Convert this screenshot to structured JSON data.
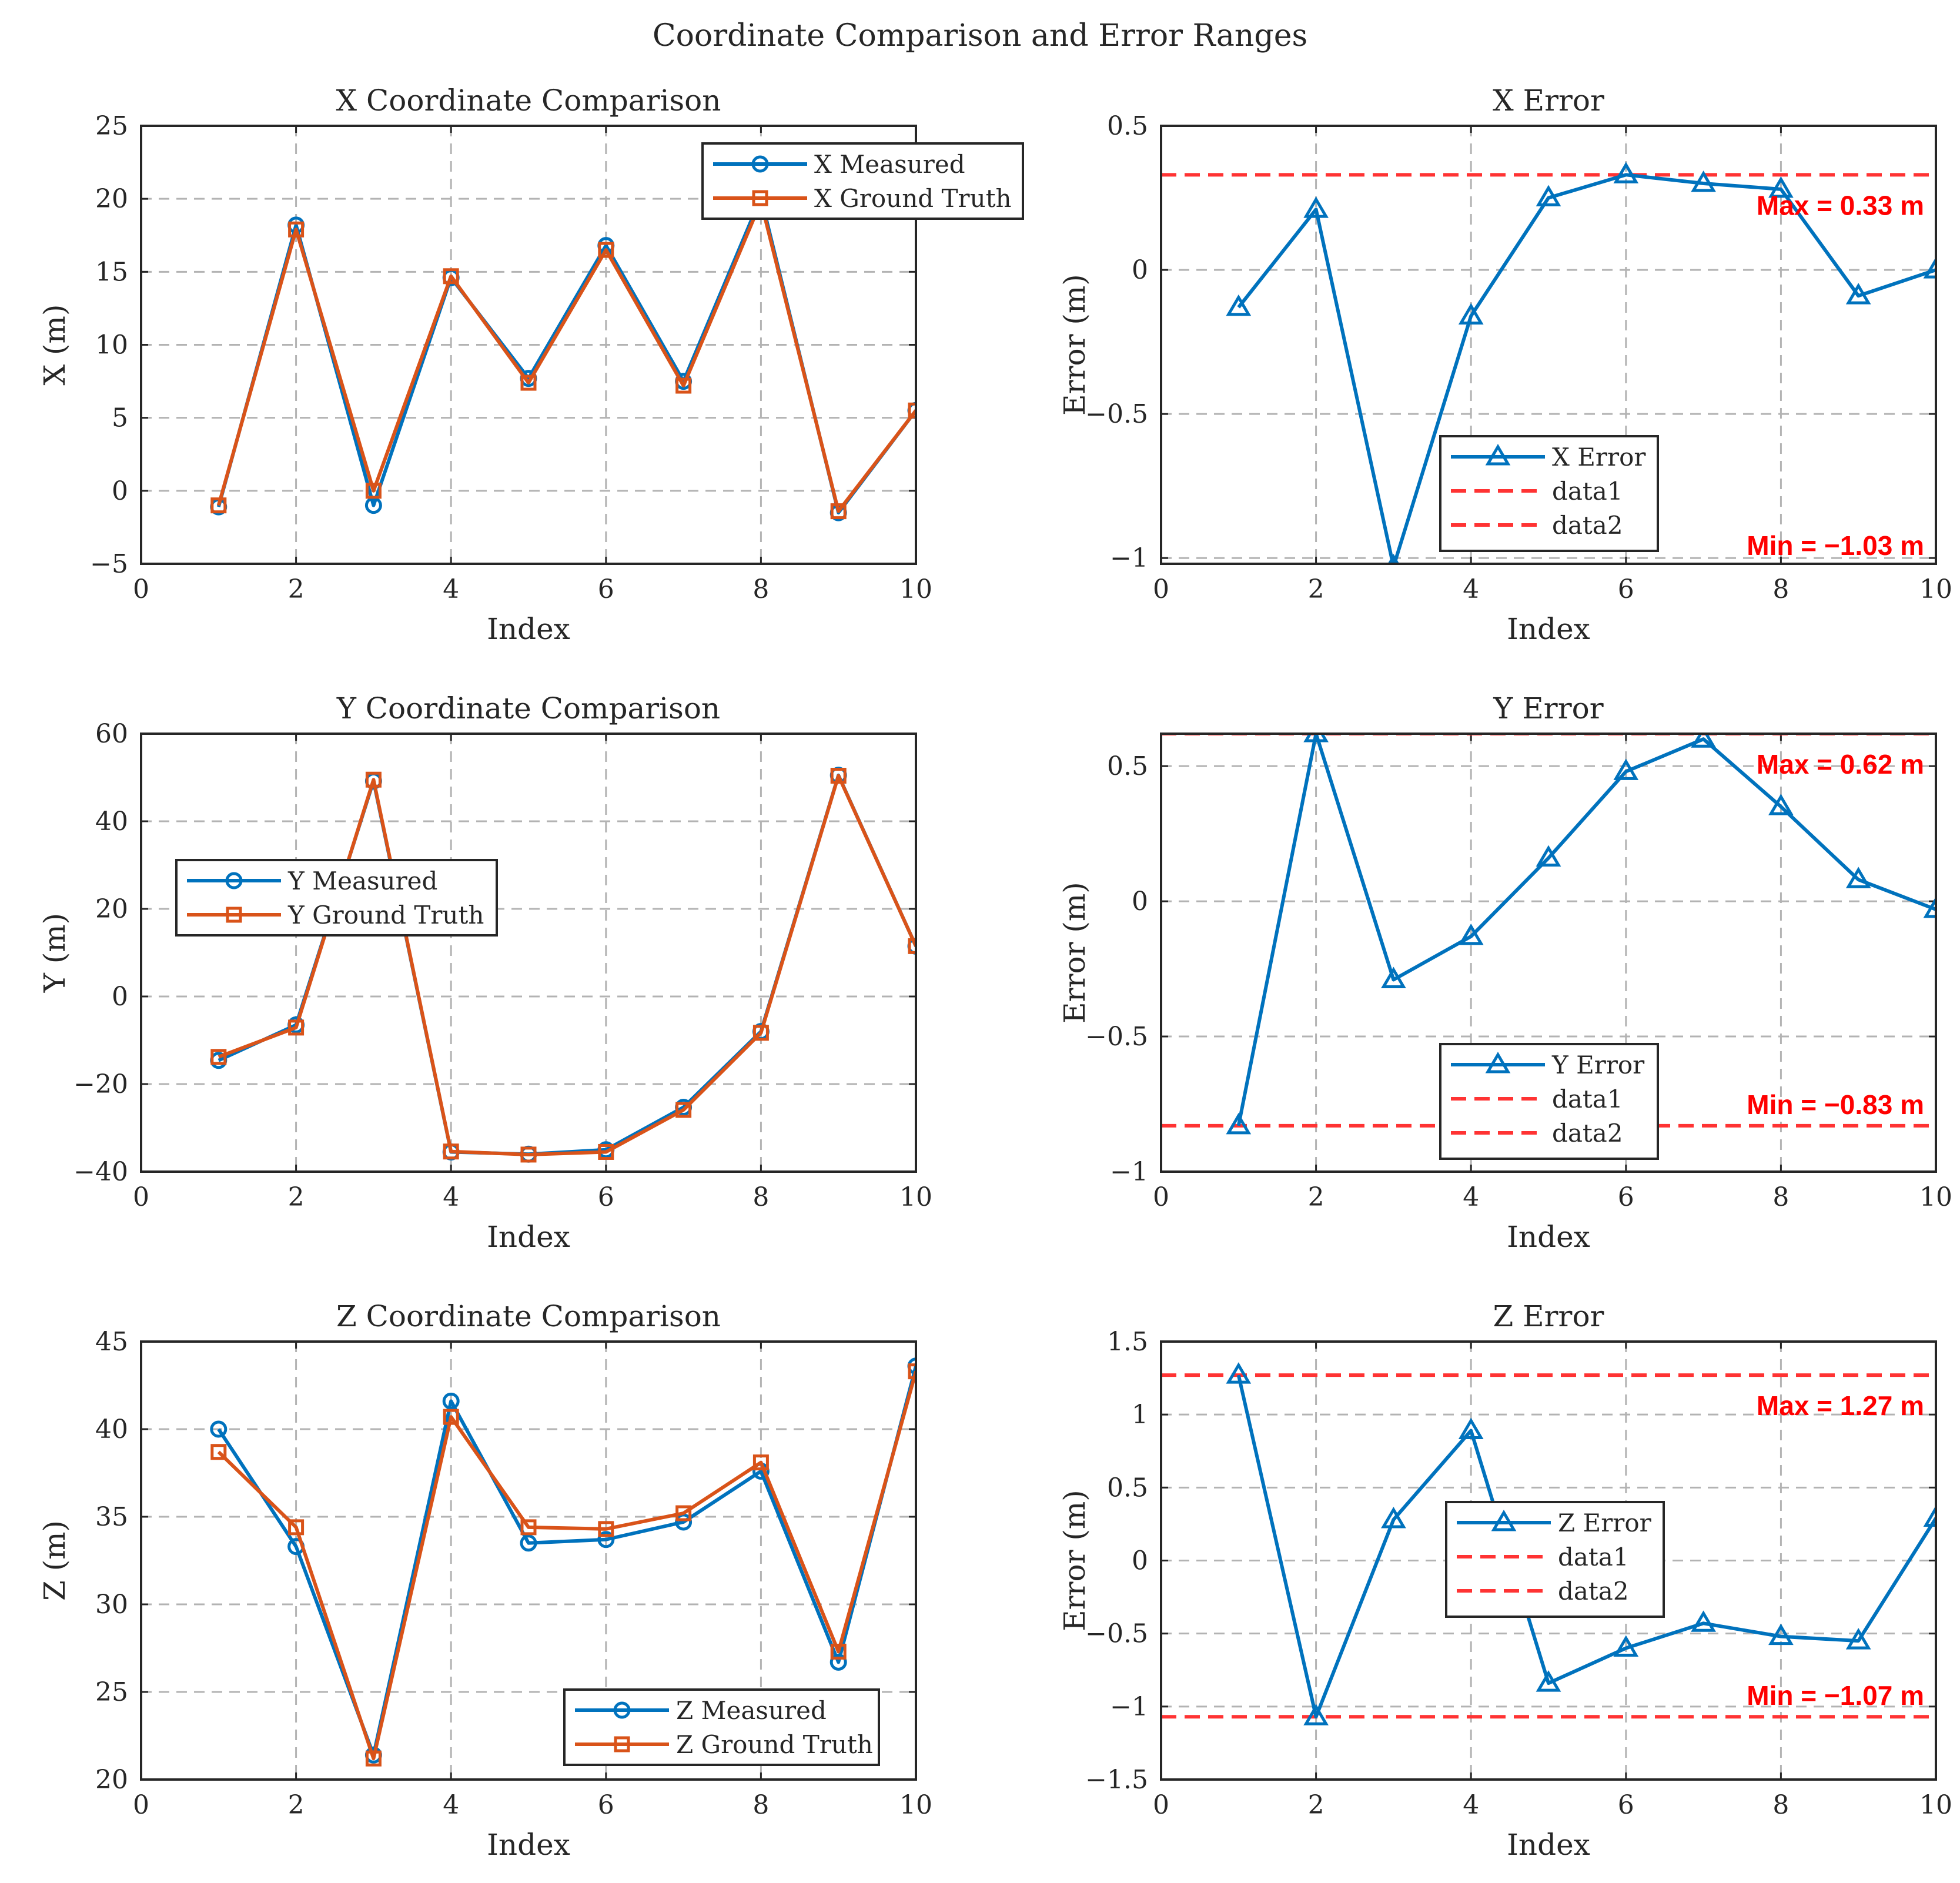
{
  "figure": {
    "title": "Coordinate Comparison and Error Ranges",
    "colors": {
      "blue": "#0072BD",
      "orange": "#D95319",
      "red": "#FF3333",
      "grid": "#b3b3b3",
      "axis": "#262626"
    }
  },
  "chart_data": [
    {
      "id": "x-compare",
      "type": "line",
      "title": "X Coordinate Comparison",
      "xlabel": "Index",
      "ylabel": "X (m)",
      "xlim": [
        0,
        10
      ],
      "ylim": [
        -5,
        25
      ],
      "xticks": [
        0,
        2,
        4,
        6,
        8,
        10
      ],
      "yticks": [
        -5,
        0,
        5,
        10,
        15,
        20,
        25
      ],
      "legend_position": "top-right",
      "x": [
        1,
        2,
        3,
        4,
        5,
        6,
        7,
        8,
        9,
        10
      ],
      "series": [
        {
          "name": "X Measured",
          "marker": "circle",
          "color": "#0072BD",
          "values": [
            -1.1,
            18.2,
            -1.0,
            14.6,
            7.7,
            16.8,
            7.5,
            20.1,
            -1.5,
            5.5
          ]
        },
        {
          "name": "X Ground Truth",
          "marker": "square",
          "color": "#D95319",
          "values": [
            -1.0,
            17.9,
            0.0,
            14.7,
            7.4,
            16.5,
            7.2,
            19.8,
            -1.4,
            5.5
          ]
        }
      ]
    },
    {
      "id": "x-error",
      "type": "line",
      "title": "X Error",
      "xlabel": "Index",
      "ylabel": "Error (m)",
      "xlim": [
        0,
        10
      ],
      "ylim": [
        -1.02,
        0.5
      ],
      "xticks": [
        0,
        2,
        4,
        6,
        8,
        10
      ],
      "yticks": [
        -1,
        -0.5,
        0,
        0.5
      ],
      "legend_position": "bottom-center",
      "x": [
        1,
        2,
        3,
        4,
        5,
        6,
        7,
        8,
        9,
        10
      ],
      "series": [
        {
          "name": "X Error",
          "marker": "triangle",
          "color": "#0072BD",
          "values": [
            -0.13,
            0.21,
            -1.03,
            -0.16,
            0.25,
            0.33,
            0.3,
            0.28,
            -0.09,
            0.0
          ]
        }
      ],
      "hlines": [
        {
          "name": "data1",
          "value": 0.33
        },
        {
          "name": "data2",
          "value": -1.03
        }
      ],
      "annotations": {
        "max_label": "Max = 0.33 m",
        "min_label": "Min = −1.03 m"
      }
    },
    {
      "id": "y-compare",
      "type": "line",
      "title": "Y Coordinate Comparison",
      "xlabel": "Index",
      "ylabel": "Y (m)",
      "xlim": [
        0,
        10
      ],
      "ylim": [
        -40,
        60
      ],
      "xticks": [
        0,
        2,
        4,
        6,
        8,
        10
      ],
      "yticks": [
        -40,
        -20,
        0,
        20,
        40,
        60
      ],
      "legend_position": "middle-left",
      "x": [
        1,
        2,
        3,
        4,
        5,
        6,
        7,
        8,
        9,
        10
      ],
      "series": [
        {
          "name": "Y Measured",
          "marker": "circle",
          "color": "#0072BD",
          "values": [
            -14.6,
            -6.5,
            49.2,
            -35.5,
            -36.0,
            -35.0,
            -25.3,
            -8.0,
            50.5,
            11.5
          ]
        },
        {
          "name": "Y Ground Truth",
          "marker": "square",
          "color": "#D95319",
          "values": [
            -13.8,
            -7.1,
            49.5,
            -35.4,
            -36.1,
            -35.5,
            -25.9,
            -8.3,
            50.4,
            11.5
          ]
        }
      ]
    },
    {
      "id": "y-error",
      "type": "line",
      "title": "Y Error",
      "xlabel": "Index",
      "ylabel": "Error (m)",
      "xlim": [
        0,
        10
      ],
      "ylim": [
        -1,
        0.62
      ],
      "xticks": [
        0,
        2,
        4,
        6,
        8,
        10
      ],
      "yticks": [
        -1,
        -0.5,
        0,
        0.5
      ],
      "legend_position": "bottom-center",
      "x": [
        1,
        2,
        3,
        4,
        5,
        6,
        7,
        8,
        9,
        10
      ],
      "series": [
        {
          "name": "Y Error",
          "marker": "triangle",
          "color": "#0072BD",
          "values": [
            -0.83,
            0.62,
            -0.29,
            -0.13,
            0.16,
            0.48,
            0.6,
            0.35,
            0.08,
            -0.03
          ]
        }
      ],
      "hlines": [
        {
          "name": "data1",
          "value": 0.62
        },
        {
          "name": "data2",
          "value": -0.83
        }
      ],
      "annotations": {
        "max_label": "Max = 0.62 m",
        "min_label": "Min = −0.83 m"
      }
    },
    {
      "id": "z-compare",
      "type": "line",
      "title": "Z Coordinate Comparison",
      "xlabel": "Index",
      "ylabel": "Z (m)",
      "xlim": [
        0,
        10
      ],
      "ylim": [
        20,
        45
      ],
      "xticks": [
        0,
        2,
        4,
        6,
        8,
        10
      ],
      "yticks": [
        20,
        25,
        30,
        35,
        40,
        45
      ],
      "legend_position": "bottom-right",
      "x": [
        1,
        2,
        3,
        4,
        5,
        6,
        7,
        8,
        9,
        10
      ],
      "series": [
        {
          "name": "Z Measured",
          "marker": "circle",
          "color": "#0072BD",
          "values": [
            40.0,
            33.3,
            21.4,
            41.6,
            33.5,
            33.7,
            34.7,
            37.6,
            26.7,
            43.6
          ]
        },
        {
          "name": "Z Ground Truth",
          "marker": "square",
          "color": "#D95319",
          "values": [
            38.7,
            34.4,
            21.2,
            40.7,
            34.4,
            34.3,
            35.2,
            38.1,
            27.3,
            43.3
          ]
        }
      ]
    },
    {
      "id": "z-error",
      "type": "line",
      "title": "Z Error",
      "xlabel": "Index",
      "ylabel": "Error (m)",
      "xlim": [
        0,
        10
      ],
      "ylim": [
        -1.5,
        1.5
      ],
      "xticks": [
        0,
        2,
        4,
        6,
        8,
        10
      ],
      "yticks": [
        -1.5,
        -1,
        -0.5,
        0,
        0.5,
        1,
        1.5
      ],
      "legend_position": "middle-left",
      "x": [
        1,
        2,
        3,
        4,
        5,
        6,
        7,
        8,
        9,
        10
      ],
      "series": [
        {
          "name": "Z Error",
          "marker": "triangle",
          "color": "#0072BD",
          "values": [
            1.27,
            -1.07,
            0.28,
            0.89,
            -0.84,
            -0.6,
            -0.43,
            -0.52,
            -0.55,
            0.29
          ]
        }
      ],
      "hlines": [
        {
          "name": "data1",
          "value": 1.27
        },
        {
          "name": "data2",
          "value": -1.07
        }
      ],
      "annotations": {
        "max_label": "Max = 1.27 m",
        "min_label": "Min = −1.07 m"
      }
    }
  ]
}
